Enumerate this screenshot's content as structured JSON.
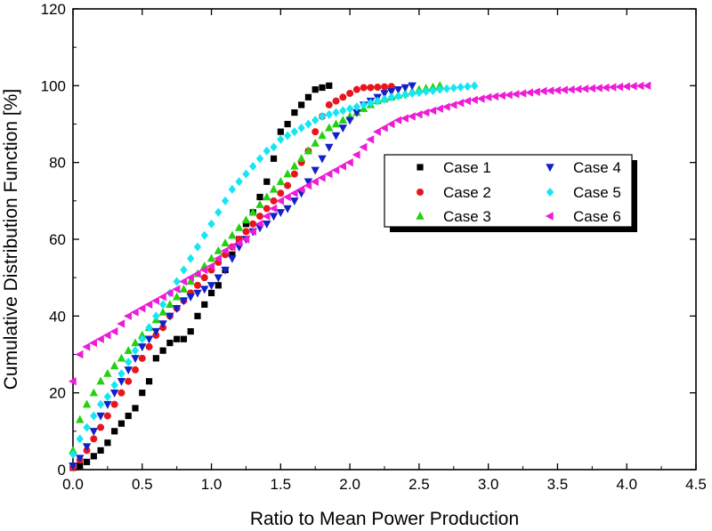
{
  "chart_data": {
    "type": "scatter",
    "title": "",
    "xlabel": "Ratio to Mean Power Production",
    "ylabel": "Cumulative Distribution Function [%]",
    "xlim": [
      0.0,
      4.5
    ],
    "ylim": [
      0,
      120
    ],
    "x_ticks": [
      "0.0",
      "0.5",
      "1.0",
      "1.5",
      "2.0",
      "2.5",
      "3.0",
      "3.5",
      "4.0",
      "4.5"
    ],
    "y_ticks": [
      "0",
      "20",
      "40",
      "60",
      "80",
      "100",
      "120"
    ],
    "grid": false,
    "legend_placement": "center-right",
    "series": [
      {
        "name": "Case 1",
        "color": "#000000",
        "marker": "square",
        "x": [
          0.0,
          0.05,
          0.1,
          0.15,
          0.2,
          0.25,
          0.3,
          0.35,
          0.4,
          0.45,
          0.5,
          0.55,
          0.6,
          0.65,
          0.7,
          0.75,
          0.8,
          0.85,
          0.9,
          0.95,
          1.0,
          1.05,
          1.1,
          1.15,
          1.2,
          1.25,
          1.3,
          1.35,
          1.4,
          1.45,
          1.5,
          1.55,
          1.6,
          1.65,
          1.7,
          1.75,
          1.8,
          1.85
        ],
        "y": [
          0.5,
          1,
          2,
          3.5,
          5,
          7,
          10,
          12,
          14,
          16,
          20,
          23,
          29,
          31,
          33,
          34,
          34,
          36,
          40,
          43,
          46,
          48,
          52,
          56,
          60,
          64,
          67,
          71,
          75,
          81,
          88,
          90,
          93,
          95,
          97,
          99,
          99.5,
          100
        ]
      },
      {
        "name": "Case 2",
        "color": "#e8161c",
        "marker": "circle",
        "x": [
          0.0,
          0.05,
          0.1,
          0.15,
          0.2,
          0.25,
          0.3,
          0.35,
          0.4,
          0.45,
          0.5,
          0.55,
          0.6,
          0.65,
          0.7,
          0.75,
          0.8,
          0.85,
          0.9,
          0.95,
          1.0,
          1.05,
          1.1,
          1.15,
          1.2,
          1.25,
          1.3,
          1.35,
          1.4,
          1.45,
          1.5,
          1.55,
          1.6,
          1.65,
          1.7,
          1.75,
          1.8,
          1.85,
          1.9,
          1.95,
          2.0,
          2.05,
          2.1,
          2.15,
          2.2,
          2.25,
          2.3
        ],
        "y": [
          0.5,
          2.5,
          5,
          8,
          11,
          14,
          17,
          20,
          23,
          26,
          29,
          32,
          35,
          37,
          40,
          42,
          44,
          46,
          48,
          50,
          52,
          54,
          56,
          58,
          60,
          62,
          64,
          66,
          68,
          70,
          72,
          74,
          77,
          80,
          83,
          88,
          92,
          95,
          96,
          97,
          98,
          99,
          99.5,
          99.5,
          99.6,
          99.7,
          99.8
        ]
      },
      {
        "name": "Case 3",
        "color": "#22d10f",
        "marker": "triangle-up",
        "x": [
          0.0,
          0.05,
          0.1,
          0.15,
          0.2,
          0.25,
          0.3,
          0.35,
          0.4,
          0.45,
          0.5,
          0.55,
          0.6,
          0.65,
          0.7,
          0.75,
          0.8,
          0.85,
          0.9,
          0.95,
          1.0,
          1.05,
          1.1,
          1.15,
          1.2,
          1.25,
          1.3,
          1.35,
          1.4,
          1.45,
          1.5,
          1.55,
          1.6,
          1.65,
          1.7,
          1.75,
          1.8,
          1.85,
          1.9,
          1.95,
          2.0,
          2.05,
          2.1,
          2.15,
          2.2,
          2.25,
          2.3,
          2.35,
          2.4,
          2.45,
          2.5,
          2.55,
          2.6,
          2.65
        ],
        "y": [
          5,
          13,
          17,
          20,
          23,
          25,
          27,
          29,
          31,
          33,
          35,
          37,
          39,
          41,
          43,
          45,
          47,
          49,
          51,
          53,
          55,
          57,
          59,
          61,
          63,
          65,
          67,
          69,
          71,
          73,
          75,
          77,
          79,
          81,
          83,
          85,
          87,
          89,
          90,
          91,
          92,
          93,
          94,
          95,
          96,
          96.5,
          97,
          97.5,
          98,
          98.5,
          99,
          99.3,
          99.6,
          100
        ]
      },
      {
        "name": "Case 4",
        "color": "#1220c8",
        "marker": "triangle-down",
        "x": [
          0.0,
          0.05,
          0.1,
          0.15,
          0.2,
          0.25,
          0.3,
          0.35,
          0.4,
          0.45,
          0.5,
          0.55,
          0.6,
          0.65,
          0.7,
          0.75,
          0.8,
          0.85,
          0.9,
          0.95,
          1.0,
          1.05,
          1.1,
          1.15,
          1.2,
          1.25,
          1.3,
          1.35,
          1.4,
          1.45,
          1.5,
          1.55,
          1.6,
          1.65,
          1.7,
          1.75,
          1.8,
          1.85,
          1.9,
          1.95,
          2.0,
          2.05,
          2.1,
          2.15,
          2.2,
          2.25,
          2.3,
          2.35,
          2.4,
          2.45
        ],
        "y": [
          1,
          3,
          6,
          10,
          14,
          17,
          20,
          23,
          26,
          29,
          32,
          34,
          36,
          38,
          40,
          42,
          44,
          45,
          46,
          47,
          48,
          50,
          52,
          55,
          58,
          60,
          62,
          63,
          64,
          66,
          67,
          68,
          70,
          72,
          75,
          78,
          81,
          84,
          87,
          89,
          91,
          93,
          95,
          96,
          97,
          98,
          98.5,
          99,
          99.5,
          100
        ]
      },
      {
        "name": "Case 5",
        "color": "#14e6f5",
        "marker": "diamond",
        "x": [
          0.0,
          0.05,
          0.1,
          0.15,
          0.2,
          0.25,
          0.3,
          0.35,
          0.4,
          0.45,
          0.5,
          0.55,
          0.6,
          0.65,
          0.7,
          0.75,
          0.8,
          0.85,
          0.9,
          0.95,
          1.0,
          1.05,
          1.1,
          1.15,
          1.2,
          1.25,
          1.3,
          1.35,
          1.4,
          1.45,
          1.5,
          1.55,
          1.6,
          1.65,
          1.7,
          1.75,
          1.8,
          1.85,
          1.9,
          1.95,
          2.0,
          2.05,
          2.1,
          2.15,
          2.2,
          2.25,
          2.3,
          2.35,
          2.4,
          2.45,
          2.5,
          2.55,
          2.6,
          2.65,
          2.7,
          2.75,
          2.8,
          2.85,
          2.9
        ],
        "y": [
          4,
          8,
          11,
          14,
          17,
          19,
          22,
          25,
          28,
          31,
          34,
          37,
          40,
          43,
          46,
          49,
          52,
          55,
          58,
          61,
          64,
          67,
          70,
          73,
          75,
          77,
          79,
          81,
          83,
          84,
          86,
          87,
          88,
          89,
          90,
          91,
          92,
          92.5,
          93,
          93.5,
          94,
          94.5,
          95,
          95.5,
          96,
          96.5,
          97,
          97.3,
          97.6,
          98,
          98.2,
          98.5,
          98.7,
          99,
          99.2,
          99.4,
          99.6,
          99.8,
          100
        ]
      },
      {
        "name": "Case 6",
        "color": "#ee1cd8",
        "marker": "triangle-left",
        "x": [
          0.0,
          0.05,
          0.1,
          0.15,
          0.2,
          0.25,
          0.3,
          0.35,
          0.4,
          0.45,
          0.5,
          0.55,
          0.6,
          0.65,
          0.7,
          0.75,
          0.8,
          0.85,
          0.9,
          0.95,
          1.0,
          1.05,
          1.1,
          1.15,
          1.2,
          1.25,
          1.3,
          1.35,
          1.4,
          1.45,
          1.5,
          1.55,
          1.6,
          1.65,
          1.7,
          1.75,
          1.8,
          1.85,
          1.9,
          1.95,
          2.0,
          2.05,
          2.1,
          2.15,
          2.2,
          2.25,
          2.3,
          2.35,
          2.4,
          2.45,
          2.5,
          2.55,
          2.6,
          2.65,
          2.7,
          2.75,
          2.8,
          2.85,
          2.9,
          2.95,
          3.0,
          3.05,
          3.1,
          3.15,
          3.2,
          3.25,
          3.3,
          3.35,
          3.4,
          3.45,
          3.5,
          3.55,
          3.6,
          3.65,
          3.7,
          3.75,
          3.8,
          3.85,
          3.9,
          3.95,
          4.0,
          4.05,
          4.1,
          4.15
        ],
        "y": [
          23,
          30,
          32,
          33,
          34,
          35,
          36,
          38,
          40,
          41,
          42,
          43,
          44,
          45,
          46,
          47,
          49,
          50,
          51,
          52,
          53,
          55,
          57,
          58,
          59,
          60,
          62,
          64,
          66,
          68,
          70,
          71,
          72,
          73,
          74,
          75,
          76,
          77,
          78,
          79,
          80,
          82,
          84,
          86,
          88,
          89,
          90,
          91,
          91.5,
          92,
          92.5,
          93,
          93.5,
          94,
          94.5,
          95,
          95.5,
          96,
          96.3,
          96.6,
          97,
          97.2,
          97.4,
          97.6,
          97.8,
          98,
          98.2,
          98.4,
          98.6,
          98.7,
          98.8,
          98.9,
          99,
          99.1,
          99.2,
          99.3,
          99.4,
          99.5,
          99.6,
          99.7,
          99.8,
          99.9,
          99.95,
          100
        ]
      }
    ]
  }
}
